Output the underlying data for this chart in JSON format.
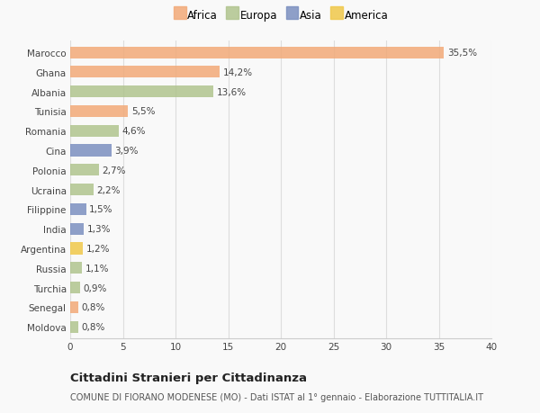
{
  "categories": [
    "Marocco",
    "Ghana",
    "Albania",
    "Tunisia",
    "Romania",
    "Cina",
    "Polonia",
    "Ucraina",
    "Filippine",
    "India",
    "Argentina",
    "Russia",
    "Turchia",
    "Senegal",
    "Moldova"
  ],
  "values": [
    35.5,
    14.2,
    13.6,
    5.5,
    4.6,
    3.9,
    2.7,
    2.2,
    1.5,
    1.3,
    1.2,
    1.1,
    0.9,
    0.8,
    0.8
  ],
  "labels": [
    "35,5%",
    "14,2%",
    "13,6%",
    "5,5%",
    "4,6%",
    "3,9%",
    "2,7%",
    "2,2%",
    "1,5%",
    "1,3%",
    "1,2%",
    "1,1%",
    "0,9%",
    "0,8%",
    "0,8%"
  ],
  "bar_colors": [
    "#F2AA78",
    "#F2AA78",
    "#B0C48E",
    "#F2AA78",
    "#B0C48E",
    "#7B8FC0",
    "#B0C48E",
    "#B0C48E",
    "#7B8FC0",
    "#7B8FC0",
    "#F0C84A",
    "#B0C48E",
    "#B0C48E",
    "#F2AA78",
    "#B0C48E"
  ],
  "legend_labels": [
    "Africa",
    "Europa",
    "Asia",
    "America"
  ],
  "legend_colors": [
    "#F2AA78",
    "#B0C48E",
    "#7B8FC0",
    "#F0C84A"
  ],
  "xlim": [
    0,
    40
  ],
  "xticks": [
    0,
    5,
    10,
    15,
    20,
    25,
    30,
    35,
    40
  ],
  "title": "Cittadini Stranieri per Cittadinanza",
  "subtitle": "COMUNE DI FIORANO MODENESE (MO) - Dati ISTAT al 1° gennaio - Elaborazione TUTTITALIA.IT",
  "background_color": "#f9f9f9",
  "bar_alpha": 0.85,
  "bar_height": 0.6
}
